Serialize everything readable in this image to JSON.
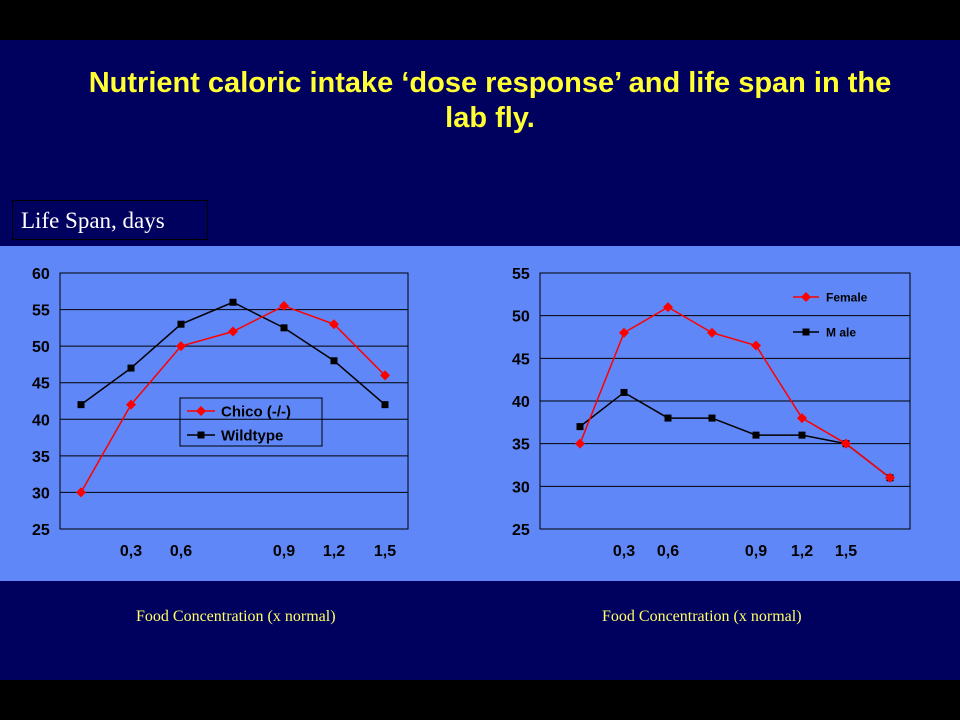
{
  "title": "Nutrient caloric intake ‘dose response’ and life span in the lab fly.",
  "ylabel": "Life Span, days",
  "colors": {
    "background": "#000000",
    "slide": "#00005e",
    "band": "#5f87f7",
    "title": "#ffff33",
    "caption": "#ffff66",
    "female_red": "#ff0000",
    "male_black": "#000000"
  },
  "chart_data": [
    {
      "type": "line",
      "title": "",
      "xlabel": "Food Concentration (x normal)",
      "ylabel": "Life Span, days",
      "ylim": [
        25,
        60
      ],
      "yticks": [
        25,
        30,
        35,
        40,
        45,
        50,
        55,
        60
      ],
      "xtick_labels": [
        "",
        "0,3",
        "0,6",
        "",
        "0,9",
        "1,2",
        "1,5"
      ],
      "grid": true,
      "legend": "center-right",
      "series": [
        {
          "name": "Chico (-/-)",
          "color": "#ff0000",
          "marker": "diamond",
          "values": [
            30,
            42,
            50,
            52,
            55.5,
            53,
            46
          ]
        },
        {
          "name": "Wildtype",
          "color": "#000000",
          "marker": "square",
          "values": [
            42,
            47,
            53,
            56,
            52.5,
            48,
            42
          ]
        }
      ]
    },
    {
      "type": "line",
      "title": "",
      "xlabel": "Food Concentration (x normal)",
      "ylabel": "Life Span, days",
      "ylim": [
        25,
        55
      ],
      "yticks": [
        25,
        30,
        35,
        40,
        45,
        50,
        55
      ],
      "xtick_labels": [
        "",
        "0,3",
        "0,6",
        "",
        "0,9",
        "1,2",
        "1,5",
        ""
      ],
      "grid": true,
      "legend": "top-right",
      "series": [
        {
          "name": "Female",
          "color": "#ff0000",
          "marker": "diamond",
          "values": [
            35,
            48,
            51,
            48,
            46.5,
            38,
            35,
            31
          ]
        },
        {
          "name": "M ale",
          "color": "#000000",
          "marker": "square",
          "values": [
            37,
            41,
            38,
            38,
            36,
            36,
            35,
            31
          ]
        }
      ]
    }
  ]
}
